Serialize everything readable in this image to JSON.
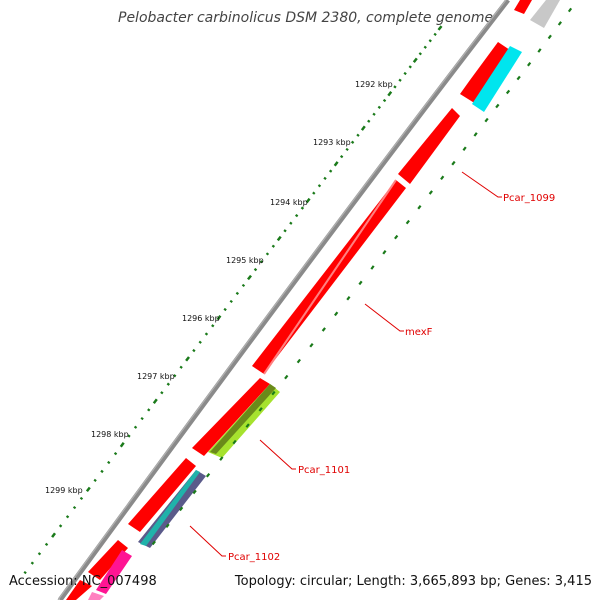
{
  "title": "Pelobacter carbinolicus DSM 2380, complete genome",
  "accession": "Accession: NC_007498",
  "summary": "Topology: circular; Length: 3,665,893 bp; Genes: 3,415",
  "kbp_ticks": [
    "1292 kbp",
    "1293 kbp",
    "1294 kbp",
    "1295 kbp",
    "1296 kbp",
    "1297 kbp",
    "1298 kbp",
    "1299 kbp"
  ],
  "gene_labels": [
    "Pcar_1099",
    "mexF",
    "Pcar_1101",
    "Pcar_1102"
  ],
  "colors": {
    "backbone": "#8a8a8a",
    "cds": "#ff0000",
    "tick": "#1a7a1a",
    "label": "#e00000",
    "cyan": "#00e5ee",
    "lime": "#a6e22e",
    "slate": "#5a5a8a",
    "teal": "#20b2aa",
    "magenta": "#ff1493",
    "grey": "#c8c8c8"
  }
}
